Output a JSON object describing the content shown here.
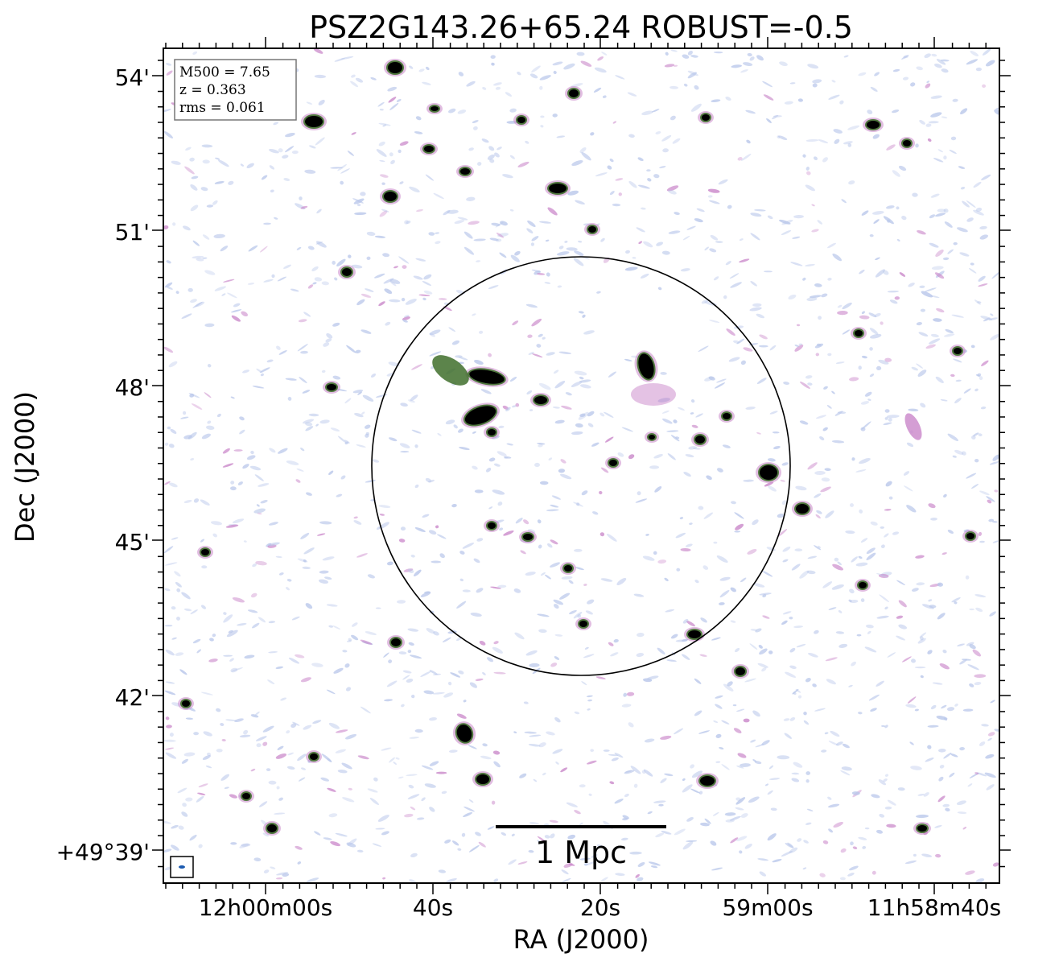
{
  "title": "PSZ2G143.26+65.24 ROBUST=-0.5",
  "info_box": {
    "mass": "M500 = 7.65",
    "redshift": "z = 0.363",
    "rms": "rms = 0.061"
  },
  "axes": {
    "xlabel": "RA (J2000)",
    "ylabel": "Dec (J2000)",
    "x_ticks": [
      "12h00m00s",
      "40s",
      "20s",
      "59m00s",
      "11h58m40s"
    ],
    "y_ticks": [
      "54'",
      "51'",
      "48'",
      "45'",
      "42'",
      "+49°39'"
    ]
  },
  "scalebar": {
    "label": "1 Mpc"
  },
  "colors": {
    "noise_light": "#b8c6ea",
    "noise_pink": "#c986c9",
    "source_green": "#3f6f2c",
    "source_core": "#000000"
  }
}
